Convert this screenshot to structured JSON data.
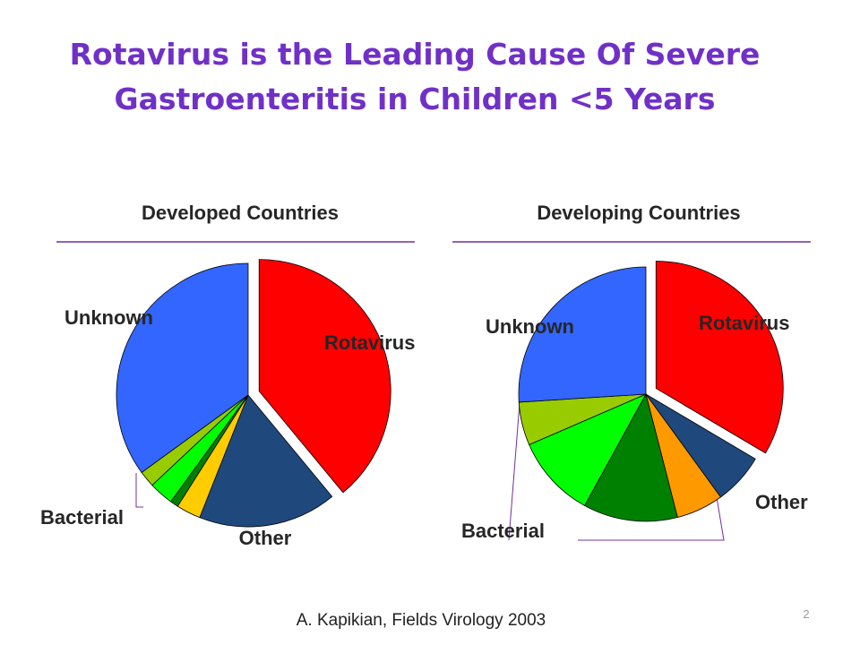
{
  "title": "Rotavirus is the Leading Cause Of Severe Gastroenteritis in Children <5 Years",
  "citation": "A. Kapikian, Fields Virology 2003",
  "page_number": "2",
  "chart_data": [
    {
      "type": "pie",
      "title": "Developed Countries",
      "categories": [
        "Rotavirus",
        "Other",
        null,
        null,
        null,
        null,
        "Unknown"
      ],
      "values": [
        39,
        17,
        3,
        1,
        3,
        2,
        35
      ],
      "colors": [
        "#ff0000",
        "#1f497d",
        "#ffcc00",
        "#008000",
        "#00ff00",
        "#99cc00",
        "#3366ff"
      ],
      "annotations": [
        "Bacterial"
      ]
    },
    {
      "type": "pie",
      "title": "Developing Countries",
      "categories": [
        "Rotavirus",
        "Other",
        null,
        null,
        null,
        null,
        "Unknown"
      ],
      "values": [
        33.5,
        6.5,
        6,
        12,
        10.5,
        5.5,
        26
      ],
      "colors": [
        "#ff0000",
        "#1f497d",
        "#ff9900",
        "#008000",
        "#00ff00",
        "#99cc00",
        "#3366ff"
      ],
      "annotations": [
        "Bacterial"
      ]
    }
  ]
}
